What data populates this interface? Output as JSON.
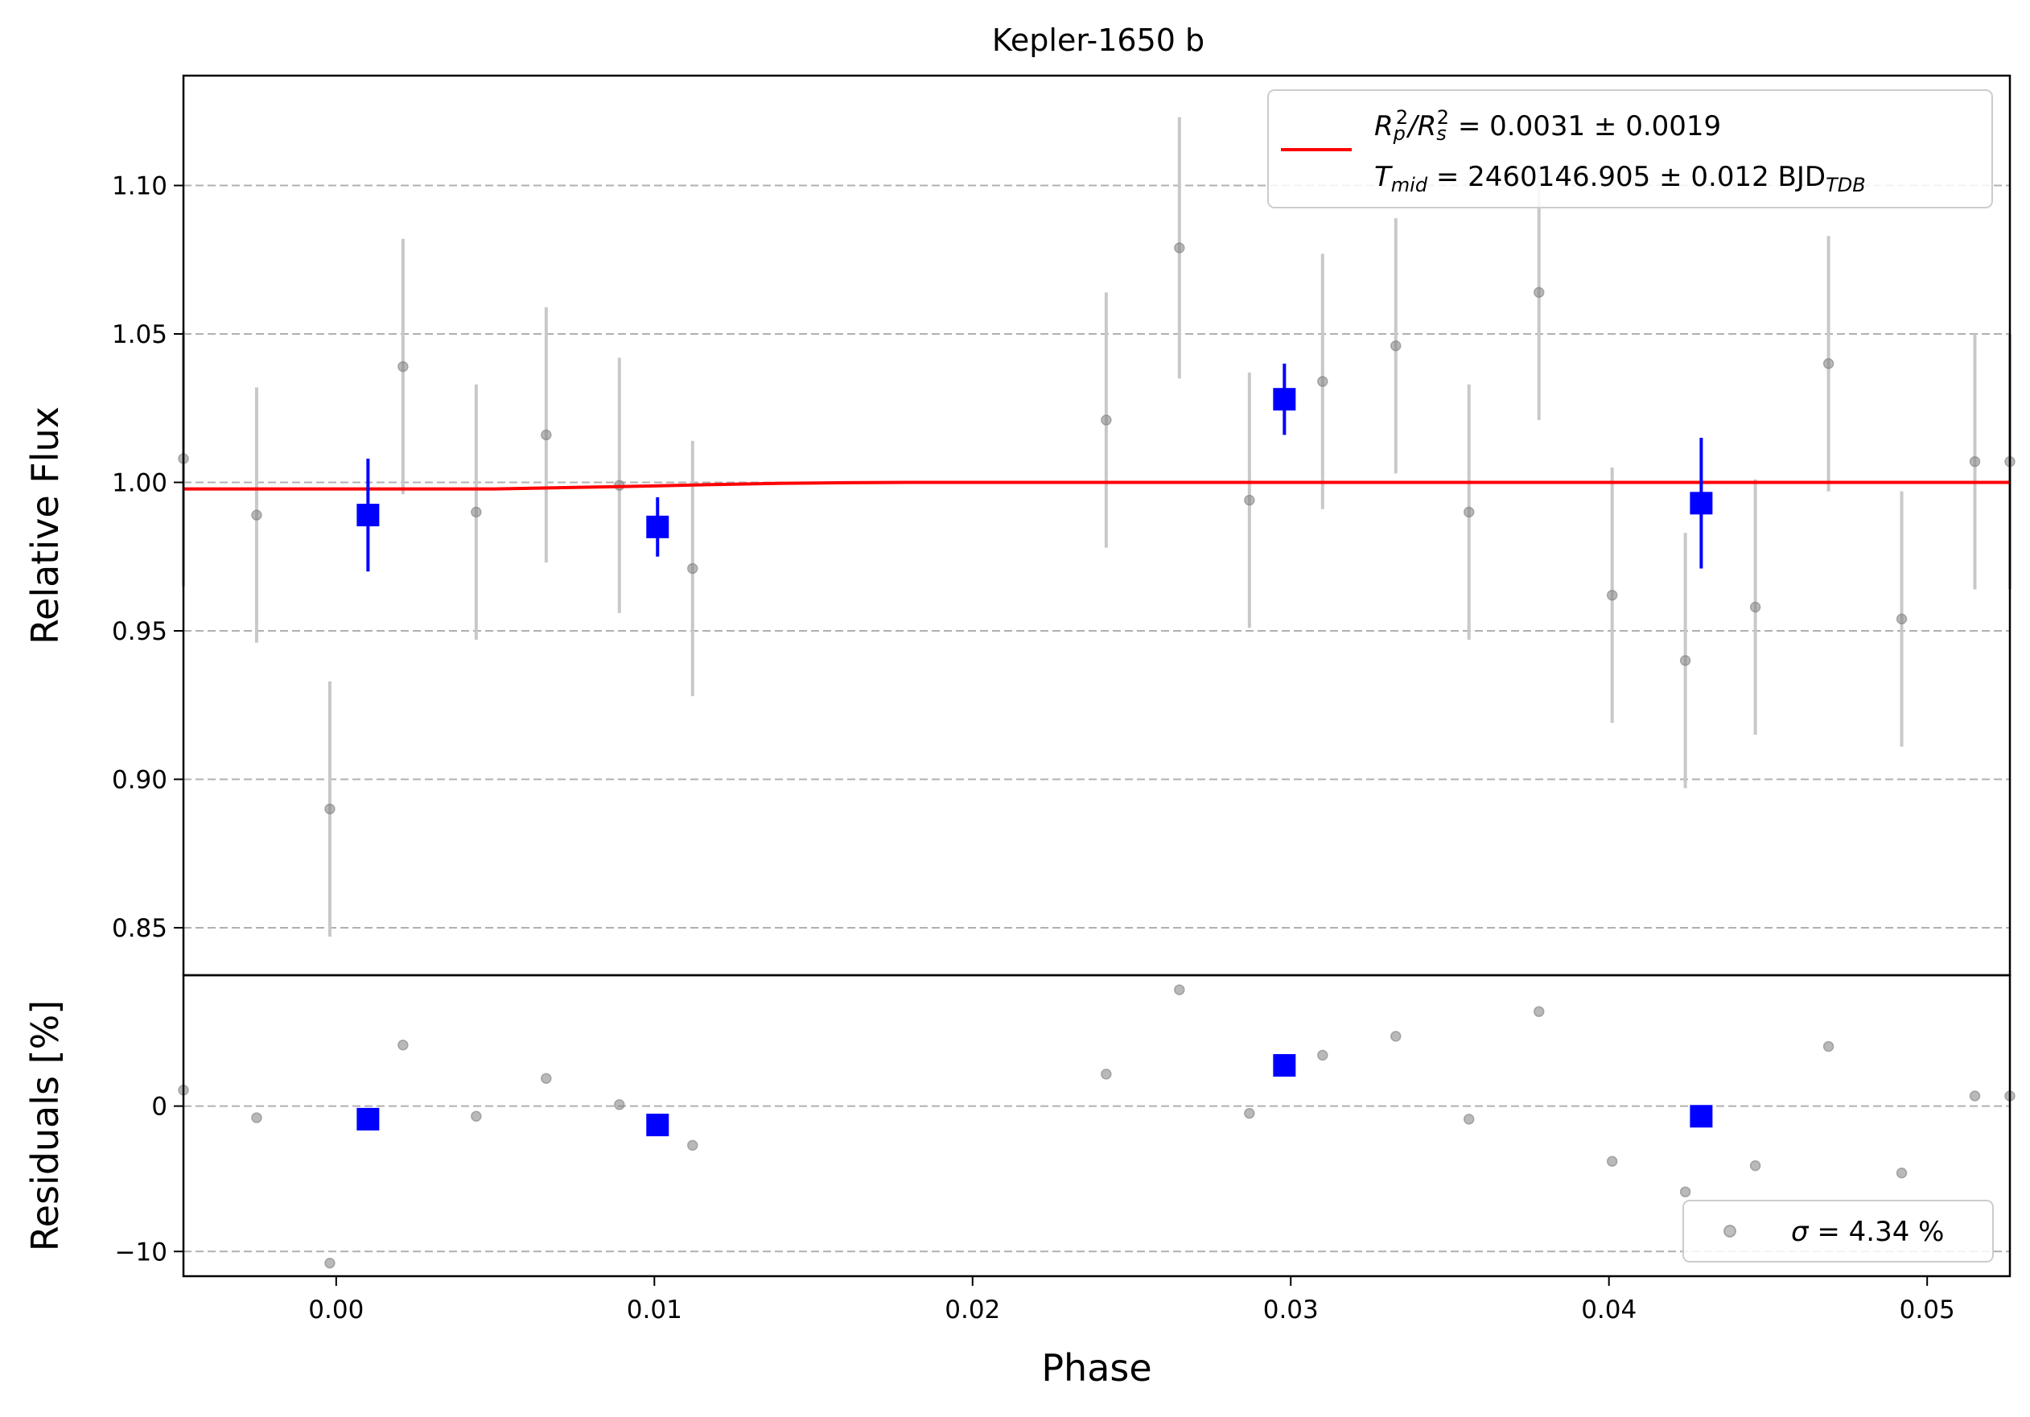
{
  "chart_data": {
    "type": "scatter",
    "title": "Kepler-1650 b",
    "xlabel": "Phase",
    "xlim": [
      -0.0048,
      0.0526
    ],
    "x_ticks": [
      "0.00",
      "0.01",
      "0.02",
      "0.03",
      "0.04",
      "0.05"
    ],
    "x_tick_values": [
      0.0,
      0.01,
      0.02,
      0.03,
      0.04,
      0.05
    ],
    "top_panel": {
      "ylabel": "Relative Flux",
      "ylim": [
        0.834,
        1.137
      ],
      "y_ticks": [
        "0.85",
        "0.90",
        "0.95",
        "1.00",
        "1.05",
        "1.10"
      ],
      "y_tick_values": [
        0.85,
        0.9,
        0.95,
        1.0,
        1.05,
        1.1
      ],
      "grid": "horizontal dashed",
      "series": [
        {
          "kind": "raw",
          "color": "#808080",
          "x": [
            -0.0048,
            -0.0025,
            -0.0002,
            0.0021,
            0.0044,
            0.0066,
            0.0089,
            0.0112,
            0.0242,
            0.0265,
            0.0287,
            0.031,
            0.0333,
            0.0356,
            0.0378,
            0.0401,
            0.0424,
            0.0446,
            0.0469,
            0.0492,
            0.0515,
            0.0526
          ],
          "y": [
            1.008,
            0.989,
            0.89,
            1.039,
            0.99,
            1.016,
            0.999,
            0.971,
            1.021,
            1.079,
            0.994,
            1.034,
            1.046,
            0.99,
            1.064,
            0.962,
            0.94,
            0.958,
            1.04,
            0.954,
            1.007,
            1.007
          ],
          "err": [
            0.043,
            0.043,
            0.043,
            0.043,
            0.043,
            0.043,
            0.043,
            0.043,
            0.043,
            0.044,
            0.043,
            0.043,
            0.043,
            0.043,
            0.043,
            0.043,
            0.043,
            0.043,
            0.043,
            0.043,
            0.043,
            0.043
          ]
        },
        {
          "kind": "binned",
          "color": "#0000ff",
          "x": [
            0.001,
            0.0101,
            0.0298,
            0.0429
          ],
          "y": [
            0.989,
            0.985,
            1.028,
            0.993
          ],
          "err": [
            0.019,
            0.01,
            0.012,
            0.022
          ]
        }
      ],
      "model": {
        "color": "#ff0000",
        "x": [
          -0.0048,
          0.005,
          0.006,
          0.008,
          0.01,
          0.012,
          0.014,
          0.016,
          0.018,
          0.0526
        ],
        "y": [
          0.9978,
          0.9978,
          0.998,
          0.9984,
          0.9988,
          0.9993,
          0.9997,
          0.9999,
          1.0,
          1.0
        ]
      },
      "legend": {
        "position": "upper-right",
        "line1_pre": "R",
        "line1_sub1": "p",
        "line1_sup1": "2",
        "line1_mid": "/R",
        "line1_sub2": "s",
        "line1_sup2": "2",
        "line1_value": " = 0.0031 ± 0.0019",
        "line2_pre": "T",
        "line2_sub": "mid",
        "line2_value": " = 2460146.905 ± 0.012 BJD",
        "line2_unit_sub": "TDB"
      }
    },
    "bottom_panel": {
      "ylabel": "Residuals [%]",
      "ylim": [
        -11.7,
        9.0
      ],
      "y_ticks": [
        "−10",
        "0"
      ],
      "y_tick_values": [
        -10,
        0
      ],
      "grid_values": [
        -10,
        0
      ],
      "series": [
        {
          "kind": "raw",
          "color": "#808080",
          "x": [
            -0.0048,
            -0.0025,
            -0.0002,
            0.0021,
            0.0044,
            0.0066,
            0.0089,
            0.0112,
            0.0242,
            0.0265,
            0.0287,
            0.031,
            0.0333,
            0.0356,
            0.0378,
            0.0401,
            0.0424,
            0.0446,
            0.0469,
            0.0492,
            0.0515,
            0.0526
          ],
          "y": [
            1.1,
            -0.8,
            -10.8,
            4.2,
            -0.7,
            1.9,
            0.1,
            -2.7,
            2.2,
            8.0,
            -0.5,
            3.5,
            4.8,
            -0.9,
            6.5,
            -3.8,
            -5.9,
            -4.1,
            4.1,
            -4.6,
            0.7,
            0.7
          ]
        },
        {
          "kind": "binned",
          "color": "#0000ff",
          "x": [
            0.001,
            0.0101,
            0.0298,
            0.0429
          ],
          "y": [
            -0.9,
            -1.3,
            2.8,
            -0.7
          ]
        }
      ],
      "legend": {
        "position": "lower-right",
        "sigma_symbol": "σ",
        "sigma_value": " = 4.34 %"
      }
    }
  }
}
